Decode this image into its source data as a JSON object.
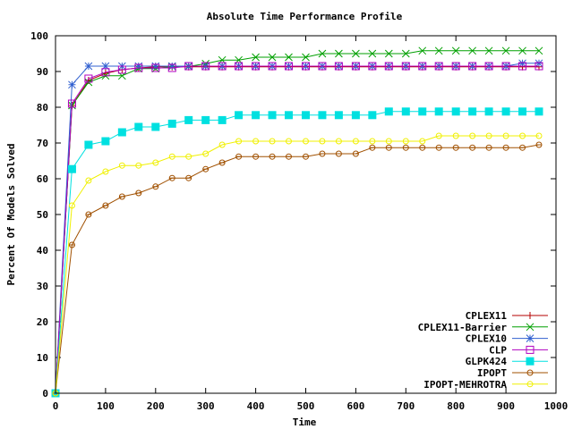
{
  "chart_data": {
    "type": "line",
    "title": "Absolute Time Performance Profile",
    "xlabel": "Time",
    "ylabel": "Percent Of Models Solved",
    "xlim": [
      0,
      1000
    ],
    "ylim": [
      0,
      100
    ],
    "xticks": [
      0,
      100,
      200,
      300,
      400,
      500,
      600,
      700,
      800,
      900,
      1000
    ],
    "yticks": [
      0,
      10,
      20,
      30,
      40,
      50,
      60,
      70,
      80,
      90,
      100
    ],
    "grid": false,
    "legend_position": "bottom-right",
    "x": [
      0,
      33,
      66,
      100,
      133,
      166,
      200,
      233,
      266,
      300,
      333,
      366,
      400,
      433,
      466,
      500,
      533,
      566,
      600,
      633,
      666,
      700,
      733,
      766,
      800,
      833,
      866,
      900,
      933,
      966
    ],
    "series": [
      {
        "name": "CPLEX11",
        "color": "#b40000",
        "marker": "plus",
        "values": [
          0,
          80.5,
          87.5,
          89.5,
          90.5,
          91,
          91.3,
          91.3,
          91.3,
          91.3,
          91.3,
          91.3,
          91.3,
          91.3,
          91.3,
          91.3,
          91.3,
          91.3,
          91.3,
          91.3,
          91.3,
          91.3,
          91.3,
          91.3,
          91.3,
          91.3,
          91.3,
          91.3,
          91.3,
          91.3
        ]
      },
      {
        "name": "CPLEX11-Barrier",
        "color": "#00a000",
        "marker": "x",
        "values": [
          0,
          80.5,
          87.0,
          88.8,
          88.8,
          90.8,
          90.8,
          91.4,
          91.4,
          92.2,
          93.2,
          93.2,
          94.0,
          94.0,
          94.0,
          94.0,
          95.0,
          95.0,
          95.0,
          95.0,
          95.0,
          95.0,
          95.8,
          95.8,
          95.8,
          95.8,
          95.8,
          95.8,
          95.8,
          95.8
        ]
      },
      {
        "name": "CPLEX10",
        "color": "#3060d0",
        "marker": "star",
        "values": [
          0,
          86.3,
          91.5,
          91.5,
          91.5,
          91.5,
          91.5,
          91.5,
          91.5,
          91.5,
          91.5,
          91.5,
          91.5,
          91.5,
          91.5,
          91.5,
          91.5,
          91.5,
          91.5,
          91.5,
          91.5,
          91.5,
          91.5,
          91.5,
          91.5,
          91.5,
          91.5,
          91.5,
          92.3,
          92.3
        ]
      },
      {
        "name": "CLP",
        "color": "#b000c0",
        "marker": "square",
        "values": [
          0,
          81.0,
          88.0,
          89.8,
          90.5,
          91.0,
          91.0,
          91.0,
          91.5,
          91.5,
          91.5,
          91.5,
          91.5,
          91.5,
          91.5,
          91.5,
          91.5,
          91.5,
          91.5,
          91.5,
          91.5,
          91.5,
          91.5,
          91.5,
          91.5,
          91.5,
          91.5,
          91.5,
          91.5,
          91.5
        ]
      },
      {
        "name": "GLPK424",
        "color": "#00e0e0",
        "marker": "filled-square",
        "values": [
          0,
          62.7,
          69.5,
          70.5,
          73.0,
          74.5,
          74.5,
          75.4,
          76.4,
          76.4,
          76.4,
          77.8,
          77.8,
          77.8,
          77.8,
          77.8,
          77.8,
          77.8,
          77.8,
          77.8,
          78.8,
          78.8,
          78.8,
          78.8,
          78.8,
          78.8,
          78.8,
          78.8,
          78.8,
          78.8
        ]
      },
      {
        "name": "IPOPT",
        "color": "#a05000",
        "marker": "circle-cross",
        "values": [
          0,
          41.5,
          50.0,
          52.5,
          55.0,
          56.0,
          57.8,
          60.2,
          60.2,
          62.7,
          64.5,
          66.2,
          66.2,
          66.2,
          66.2,
          66.2,
          67.0,
          67.0,
          67.0,
          68.7,
          68.7,
          68.7,
          68.7,
          68.7,
          68.7,
          68.7,
          68.7,
          68.7,
          68.7,
          69.5
        ]
      },
      {
        "name": "IPOPT-MEHROTRA",
        "color": "#f0f000",
        "marker": "circle",
        "values": [
          0,
          52.5,
          59.5,
          62.0,
          63.7,
          63.7,
          64.5,
          66.2,
          66.2,
          67.0,
          69.5,
          70.5,
          70.5,
          70.5,
          70.5,
          70.5,
          70.5,
          70.5,
          70.5,
          70.5,
          70.5,
          70.5,
          70.5,
          72.0,
          72.0,
          72.0,
          72.0,
          72.0,
          72.0,
          72.0
        ]
      }
    ]
  }
}
